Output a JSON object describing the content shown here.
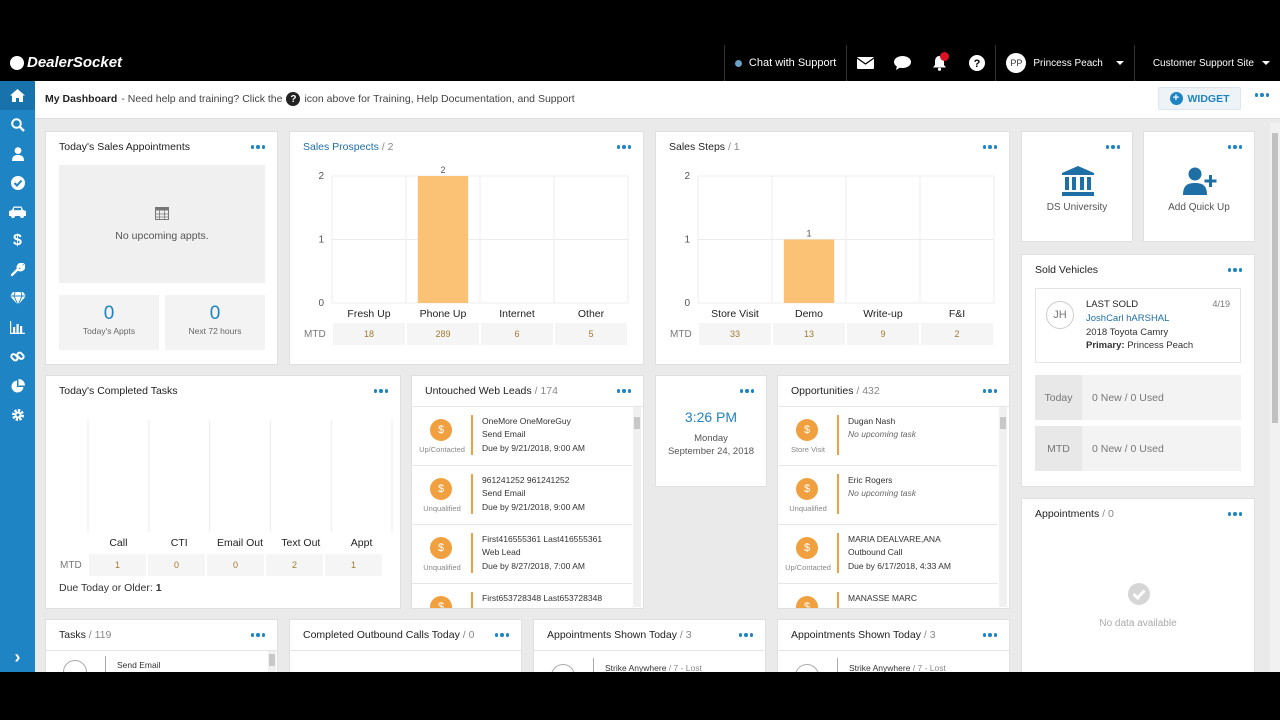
{
  "app": {
    "brand": "DealerSocket"
  },
  "topbar": {
    "chat_support": "Chat with Support",
    "user_initials": "PP",
    "user_name": "Princess Peach",
    "site": "Customer Support Site",
    "notification_badge": "1"
  },
  "header": {
    "title": "My Dashboard",
    "help_pre": "- Need help and training? Click the",
    "help_icon": "?",
    "help_post": "icon above for Training, Help Documentation, and Support",
    "widget_label": "WIDGET"
  },
  "sidebar": {
    "icons": [
      "home-icon",
      "search-icon",
      "person-icon",
      "check-circle-icon",
      "car-icon",
      "dollar-icon",
      "wrench-icon",
      "diamond-icon",
      "bar-chart-icon",
      "link-icon",
      "pie-chart-icon",
      "gear-icon"
    ],
    "expand": "›"
  },
  "appointments_today": {
    "title": "Today's Sales Appointments",
    "empty_text": "No upcoming appts.",
    "todays_count": "0",
    "todays_label": "Today's Appts",
    "next_count": "0",
    "next_label": "Next 72 hours"
  },
  "sales_prospects": {
    "title": "Sales Prospects",
    "count": "/ 2",
    "mtd_label": "MTD",
    "mtd": [
      "18",
      "289",
      "6",
      "5"
    ],
    "chart": {
      "type": "bar",
      "categories": [
        "Fresh Up",
        "Phone Up",
        "Internet",
        "Other"
      ],
      "values": [
        0,
        2,
        0,
        0
      ],
      "data_labels": [
        "",
        "2",
        "",
        ""
      ],
      "yticks": [
        "0",
        "1",
        "2"
      ],
      "ylim": [
        0,
        2
      ],
      "color": "#fbc174"
    }
  },
  "sales_steps": {
    "title": "Sales Steps",
    "count": "/ 1",
    "mtd_label": "MTD",
    "mtd": [
      "33",
      "13",
      "9",
      "2"
    ],
    "chart": {
      "type": "bar",
      "categories": [
        "Store Visit",
        "Demo",
        "Write-up",
        "F&I"
      ],
      "values": [
        0,
        1,
        0,
        0
      ],
      "data_labels": [
        "",
        "1",
        "",
        ""
      ],
      "yticks": [
        "0",
        "1",
        "2"
      ],
      "ylim": [
        0,
        2
      ],
      "color": "#fbc174"
    }
  },
  "tiles": {
    "ds_university": "DS University",
    "add_quick_up": "Add Quick Up"
  },
  "sold_vehicles": {
    "title": "Sold Vehicles",
    "initials": "JH",
    "last_sold_label": "LAST SOLD",
    "date": "4/19",
    "customer": "JoshCarl hARSHAL",
    "vehicle": "2018 Toyota Camry",
    "primary_label": "Primary:",
    "primary_name": "Princess Peach",
    "today_label": "Today",
    "today_value": "0 New /  0 Used",
    "mtd_label": "MTD",
    "mtd_value": "0 New /  0 Used"
  },
  "completed_tasks": {
    "title": "Today's Completed Tasks",
    "mtd_label": "MTD",
    "mtd": [
      "1",
      "0",
      "0",
      "2",
      "1"
    ],
    "due_label": "Due Today or Older:",
    "due_value": "1",
    "chart": {
      "type": "bar",
      "categories": [
        "Call",
        "CTI",
        "Email Out",
        "Text Out",
        "Appt"
      ],
      "values": [
        0,
        0,
        0,
        0,
        0
      ]
    }
  },
  "web_leads": {
    "title": "Untouched Web Leads",
    "count": "/ 174",
    "items": [
      {
        "status": "Up/Contacted",
        "name": "OneMore OneMoreGuy",
        "type": "Send Email",
        "due": "Due by 9/21/2018, 9:00 AM"
      },
      {
        "status": "Unqualified",
        "name": "961241252 961241252",
        "type": "Send Email",
        "due": "Due by 9/21/2018, 9:00 AM"
      },
      {
        "status": "Unqualified",
        "name": "First416555361 Last416555361",
        "type": "Web Lead",
        "due": "Due by 8/27/2018, 7:00 AM"
      },
      {
        "status": "",
        "name": "First653728348 Last653728348",
        "type": "",
        "due": ""
      }
    ]
  },
  "clock": {
    "time": "3:26 PM",
    "day": "Monday",
    "date": "September 24, 2018"
  },
  "opportunities": {
    "title": "Opportunities",
    "count": "/ 432",
    "items": [
      {
        "status": "Store Visit",
        "name": "Dugan Nash",
        "type": "No upcoming task",
        "due": ""
      },
      {
        "status": "Unqualified",
        "name": "Eric Rogers",
        "type": "No upcoming task",
        "due": ""
      },
      {
        "status": "Up/Contacted",
        "name": "MARIA DEALVARE,ANA",
        "type": "Outbound Call",
        "due": "Due by 6/17/2018, 4:33 AM"
      },
      {
        "status": "",
        "name": "MANASSE MARC",
        "type": "",
        "due": ""
      }
    ]
  },
  "appointments_widget": {
    "title": "Appointments",
    "count": "/ 0",
    "empty": "No data available"
  },
  "bottom_row": {
    "tasks_title": "Tasks",
    "tasks_count": "/ 119",
    "tasks_item": "Send Email",
    "outbound_title": "Completed Outbound Calls Today",
    "outbound_count": "/ 0",
    "shown1_title": "Appointments Shown Today",
    "shown1_count": "/ 3",
    "shown1_item": "Strike Anywhere",
    "shown1_item_sub": "/ 7 - Lost",
    "shown2_title": "Appointments Shown Today",
    "shown2_count": "/ 3",
    "shown2_item": "Strike Anywhere",
    "shown2_item_sub": "/ 7 - Lost"
  }
}
